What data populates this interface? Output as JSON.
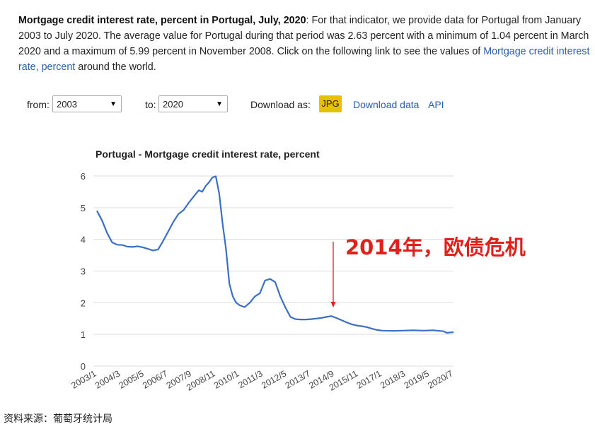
{
  "intro": {
    "bold_title": "Mortgage credit interest rate, percent in Portugal, July, 2020",
    "body_text": ": For that indicator, we provide data for Portugal from January 2003 to July 2020. The average value for Portugal during that period was 2.63 percent with a minimum of 1.04 percent in March 2020 and a maximum of 5.99 percent in November 2008. Click on the following link to see the values of ",
    "link_text": "Mortgage credit interest rate, percent",
    "tail_text": " around the world."
  },
  "controls": {
    "from_label": "from:",
    "from_value": "2003",
    "to_label": "to:",
    "to_value": "2020",
    "download_label": "Download as:",
    "jpg_label": "JPG",
    "download_data_label": "Download data",
    "api_label": "API"
  },
  "colors": {
    "line": "#3a6fc4",
    "annotation": "#e0201a",
    "grid": "#dddddd",
    "jpg_bg": "#e8c000",
    "link": "#2a5db0"
  },
  "chart_data": {
    "type": "line",
    "title": "Portugal - Mortgage credit interest rate, percent",
    "xlabel": "",
    "ylabel": "",
    "ylim": [
      0,
      6
    ],
    "yticks": [
      0,
      1,
      2,
      3,
      4,
      5,
      6
    ],
    "grid": true,
    "x_tick_labels": [
      "2003/1",
      "2004/3",
      "2005/5",
      "2006/7",
      "2007/9",
      "2008/11",
      "2010/1",
      "2011/3",
      "2012/5",
      "2013/7",
      "2014/9",
      "2015/11",
      "2017/1",
      "2018/3",
      "2019/5",
      "2020/7"
    ],
    "series": [
      {
        "x": [
          "2003/1",
          "2003/4",
          "2003/7",
          "2003/10",
          "2004/1",
          "2004/4",
          "2004/7",
          "2004/10",
          "2005/1",
          "2005/4",
          "2005/7",
          "2005/10",
          "2006/1",
          "2006/4",
          "2006/7",
          "2006/10",
          "2007/1",
          "2007/4",
          "2007/7",
          "2007/10",
          "2008/1",
          "2008/3",
          "2008/5",
          "2008/7",
          "2008/9",
          "2008/11",
          "2009/1",
          "2009/3",
          "2009/5",
          "2009/7",
          "2009/9",
          "2009/11",
          "2010/1",
          "2010/4",
          "2010/7",
          "2010/10",
          "2011/1",
          "2011/4",
          "2011/7",
          "2011/10",
          "2012/1",
          "2012/4",
          "2012/7",
          "2012/10",
          "2013/1",
          "2013/4",
          "2013/7",
          "2013/10",
          "2014/1",
          "2014/4",
          "2014/7",
          "2014/10",
          "2015/1",
          "2015/4",
          "2015/7",
          "2015/10",
          "2016/1",
          "2016/4",
          "2016/7",
          "2016/10",
          "2017/1",
          "2017/7",
          "2018/1",
          "2018/7",
          "2019/1",
          "2019/7",
          "2020/1",
          "2020/3",
          "2020/7"
        ],
        "values": [
          4.9,
          4.6,
          4.2,
          3.9,
          3.83,
          3.82,
          3.77,
          3.76,
          3.78,
          3.75,
          3.7,
          3.65,
          3.68,
          3.95,
          4.25,
          4.55,
          4.8,
          4.92,
          5.15,
          5.35,
          5.55,
          5.5,
          5.68,
          5.8,
          5.95,
          5.99,
          5.45,
          4.5,
          3.7,
          2.6,
          2.2,
          2.0,
          1.92,
          1.86,
          2.0,
          2.2,
          2.3,
          2.7,
          2.75,
          2.65,
          2.2,
          1.85,
          1.55,
          1.48,
          1.47,
          1.47,
          1.48,
          1.5,
          1.52,
          1.55,
          1.58,
          1.52,
          1.45,
          1.38,
          1.32,
          1.28,
          1.26,
          1.23,
          1.18,
          1.14,
          1.12,
          1.11,
          1.12,
          1.13,
          1.12,
          1.13,
          1.1,
          1.05,
          1.07
        ]
      }
    ],
    "annotations": [
      {
        "text": "2014年，欧债危机",
        "x": "2014/9"
      }
    ]
  },
  "source": "资料来源：葡萄牙统计局"
}
